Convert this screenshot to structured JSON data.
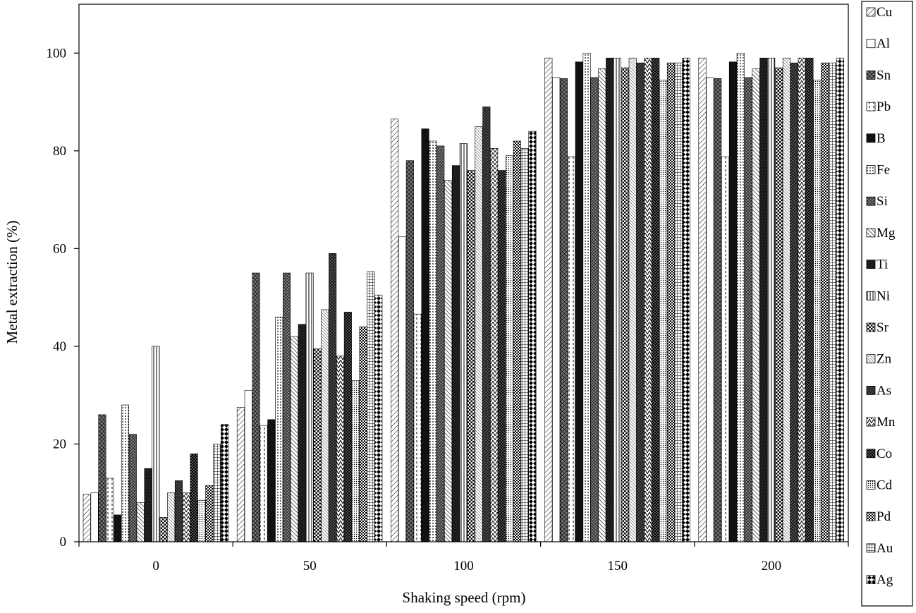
{
  "chart_data": {
    "type": "bar",
    "title": "",
    "xlabel": "Shaking speed (rpm)",
    "ylabel": "Metal extraction (%)",
    "ylim": [
      0,
      110
    ],
    "yticks": [
      0,
      20,
      40,
      60,
      80,
      100
    ],
    "grid": false,
    "legend_position": "right",
    "categories": [
      "0",
      "50",
      "100",
      "150",
      "200"
    ],
    "series": [
      {
        "name": "Cu",
        "values": [
          9.7,
          27.5,
          86.5,
          99,
          99
        ]
      },
      {
        "name": "Al",
        "values": [
          10,
          31,
          62.4,
          95,
          95
        ]
      },
      {
        "name": "Sn",
        "values": [
          26,
          55,
          78,
          94.8,
          94.8
        ]
      },
      {
        "name": "Pb",
        "values": [
          13,
          23.8,
          46.6,
          78.8,
          78.8
        ]
      },
      {
        "name": "B",
        "values": [
          5.5,
          25,
          84.5,
          98.2,
          98.2
        ]
      },
      {
        "name": "Fe",
        "values": [
          28,
          46,
          82,
          100,
          100
        ]
      },
      {
        "name": "Si",
        "values": [
          22,
          55,
          81,
          95,
          95
        ]
      },
      {
        "name": "Mg",
        "values": [
          8,
          42,
          74,
          96.8,
          96.8
        ]
      },
      {
        "name": "Ti",
        "values": [
          15,
          44.5,
          77,
          99,
          99
        ]
      },
      {
        "name": "Ni",
        "values": [
          40,
          55,
          81.5,
          99,
          99
        ]
      },
      {
        "name": "Sr",
        "values": [
          5,
          39.5,
          76,
          97,
          97
        ]
      },
      {
        "name": "Zn",
        "values": [
          10,
          47.5,
          85,
          99,
          99
        ]
      },
      {
        "name": "As",
        "values": [
          12.5,
          59,
          89,
          98,
          98
        ]
      },
      {
        "name": "Mn",
        "values": [
          10,
          38,
          80.5,
          99,
          99
        ]
      },
      {
        "name": "Co",
        "values": [
          18,
          47,
          76,
          99,
          99
        ]
      },
      {
        "name": "Cd",
        "values": [
          8.5,
          33,
          79,
          94.5,
          94.5
        ]
      },
      {
        "name": "Pd",
        "values": [
          11.5,
          44,
          82,
          98,
          98
        ]
      },
      {
        "name": "Au",
        "values": [
          20,
          55.3,
          80.5,
          98,
          98
        ]
      },
      {
        "name": "Ag",
        "values": [
          24,
          50.5,
          84,
          99,
          99
        ]
      }
    ]
  }
}
